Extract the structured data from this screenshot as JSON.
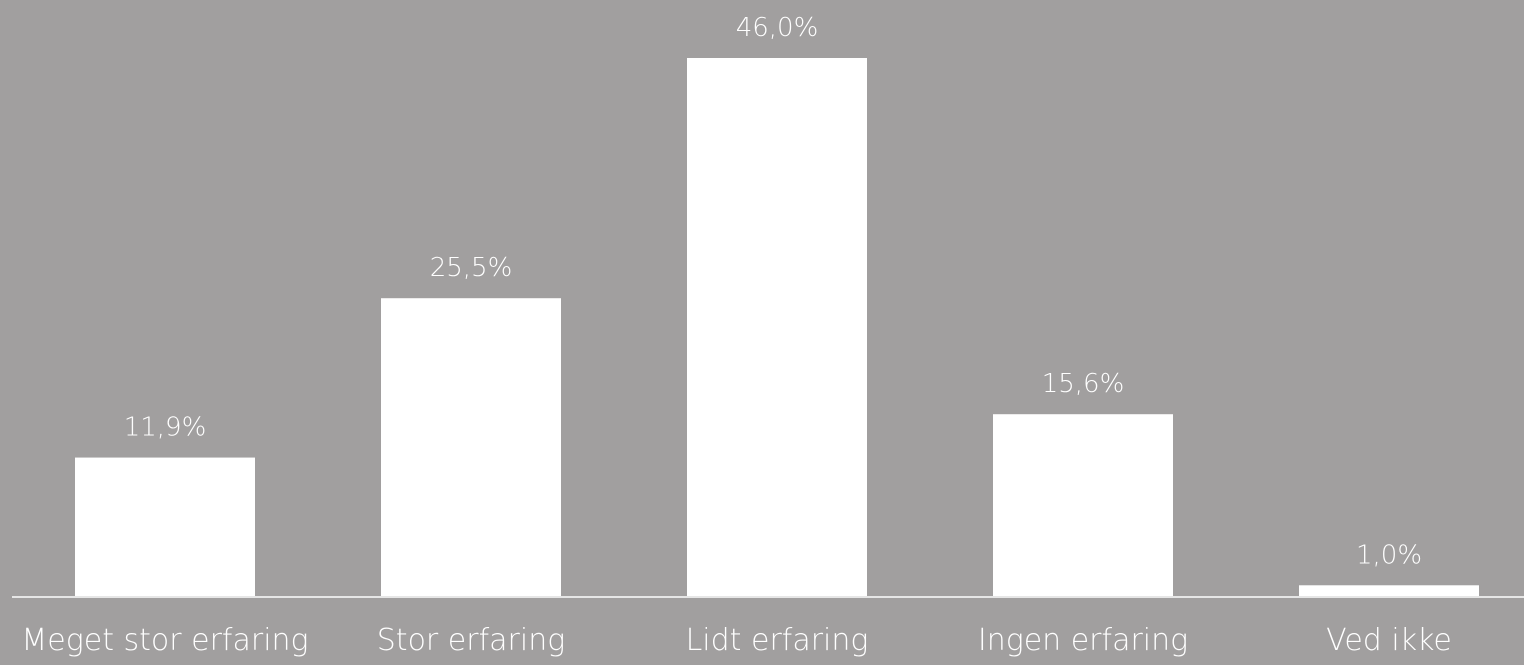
{
  "chart_data": {
    "type": "bar",
    "categories": [
      "Meget stor erfaring",
      "Stor erfaring",
      "Lidt erfaring",
      "Ingen erfaring",
      "Ved ikke"
    ],
    "values": [
      11.9,
      25.5,
      46.0,
      15.6,
      1.0
    ],
    "data_labels": [
      "11,9%",
      "25,5%",
      "46,0%",
      "15,6%",
      "1,0%"
    ],
    "title": "",
    "xlabel": "",
    "ylabel": "",
    "ylim": [
      0,
      46.0
    ],
    "grid": false,
    "legend": "none",
    "colors": {
      "background": "#a19f9f",
      "bar": "#ffffff",
      "axis": "#e6e6e6",
      "text": "#ffffff"
    }
  }
}
